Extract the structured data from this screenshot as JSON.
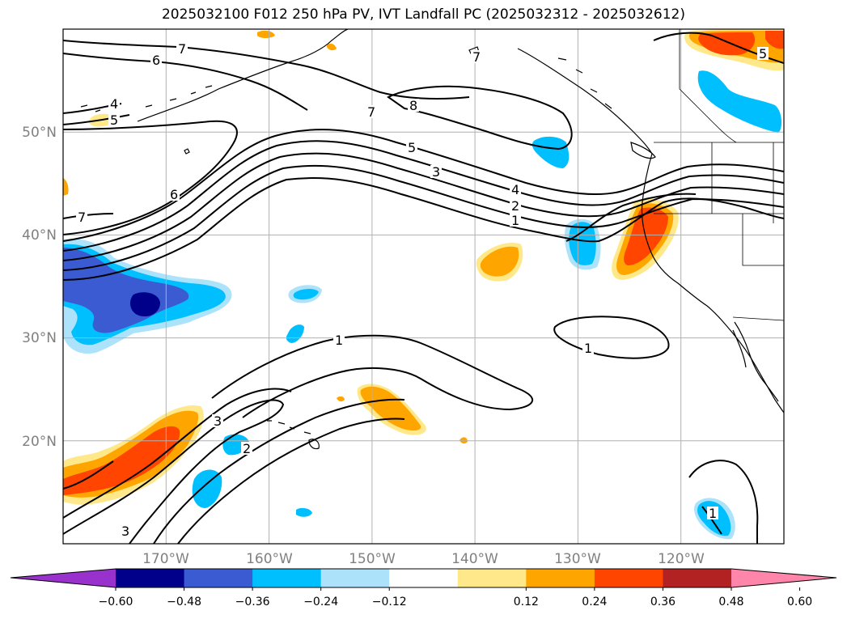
{
  "title": "2025032100 F012 250 hPa PV, IVT Landfall PC (2025032312 - 2025032612)",
  "map": {
    "lat_labels": [
      "50°N",
      "40°N",
      "30°N",
      "20°N"
    ],
    "lon_labels": [
      "170°W",
      "160°W",
      "150°W",
      "140°W",
      "130°W",
      "120°W"
    ],
    "lat_values": [
      50,
      40,
      30,
      20
    ],
    "lon_values": [
      -170,
      -160,
      -150,
      -140,
      -130,
      -120
    ],
    "extent": {
      "lon_min": -180,
      "lon_max": -110,
      "lat_min": 10,
      "lat_max": 60
    },
    "gridlines": true,
    "pv_contour_labels": [
      "7",
      "6",
      "4",
      "5",
      "7",
      "8",
      "5",
      "3",
      "4",
      "2",
      "1",
      "6",
      "7",
      "1",
      "1",
      "3",
      "2",
      "3",
      "1",
      "7",
      "5"
    ]
  },
  "colorbar": {
    "ticks": [
      "−0.60",
      "−0.48",
      "−0.36",
      "−0.24",
      "−0.12",
      "0.12",
      "0.24",
      "0.36",
      "0.48",
      "0.60"
    ],
    "bins": [
      {
        "color": "#9932cc"
      },
      {
        "color": "#00008b"
      },
      {
        "color": "#3a5bd1"
      },
      {
        "color": "#00bfff"
      },
      {
        "color": "#ade3fa"
      },
      {
        "color": "#ffffff"
      },
      {
        "color": "#ffe88a"
      },
      {
        "color": "#ffa500"
      },
      {
        "color": "#ff4500"
      },
      {
        "color": "#b22222"
      },
      {
        "color": "#ff85aa"
      }
    ]
  },
  "chart_data": {
    "type": "heatmap",
    "title": "2025032100 F012 250 hPa PV, IVT Landfall PC (2025032312 - 2025032612)",
    "fill_variable": "IVT Landfall PC",
    "contour_variable": "250 hPa PV",
    "levels": [
      -0.6,
      -0.48,
      -0.36,
      -0.24,
      -0.12,
      0.12,
      0.24,
      0.36,
      0.48,
      0.6
    ],
    "x_range_lon": [
      -180,
      -110
    ],
    "y_range_lat": [
      10,
      60
    ],
    "pv_contour_levels": [
      1,
      2,
      3,
      4,
      5,
      6,
      7,
      8
    ]
  }
}
